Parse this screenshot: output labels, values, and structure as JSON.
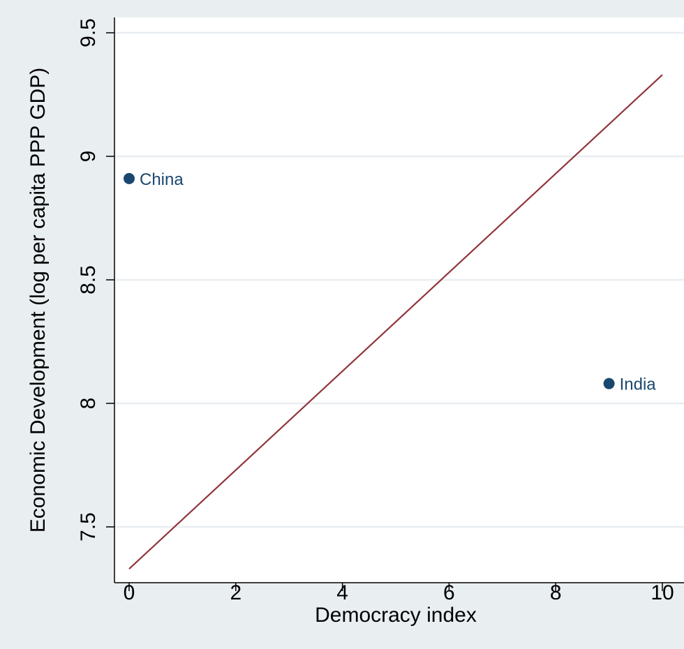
{
  "chart_data": {
    "type": "scatter",
    "title": "",
    "xlabel": "Democracy index",
    "ylabel": "Economic Development (log per capita PPP GDP)",
    "xlim": [
      0,
      10
    ],
    "ylim": [
      7.32,
      9.55
    ],
    "xticks": [
      0,
      2,
      4,
      6,
      8,
      10
    ],
    "yticks": [
      7.5,
      8,
      8.5,
      9,
      9.5
    ],
    "xtick_labels": [
      "0",
      "2",
      "4",
      "6",
      "8",
      "10"
    ],
    "ytick_labels": [
      "7.5",
      "8",
      "8.5",
      "9",
      "9.5"
    ],
    "grid": true,
    "legend": "none",
    "points": [
      {
        "label": "China",
        "x": 0,
        "y": 8.91
      },
      {
        "label": "India",
        "x": 9,
        "y": 8.08
      }
    ],
    "fit_line": {
      "x": [
        0,
        10
      ],
      "y": [
        7.33,
        9.33
      ]
    },
    "colors": {
      "background": "#e9eef1",
      "plot_area": "#ffffff",
      "grid": "#e9eef1",
      "points": "#1a476f",
      "fit_line": "#90353b"
    }
  }
}
